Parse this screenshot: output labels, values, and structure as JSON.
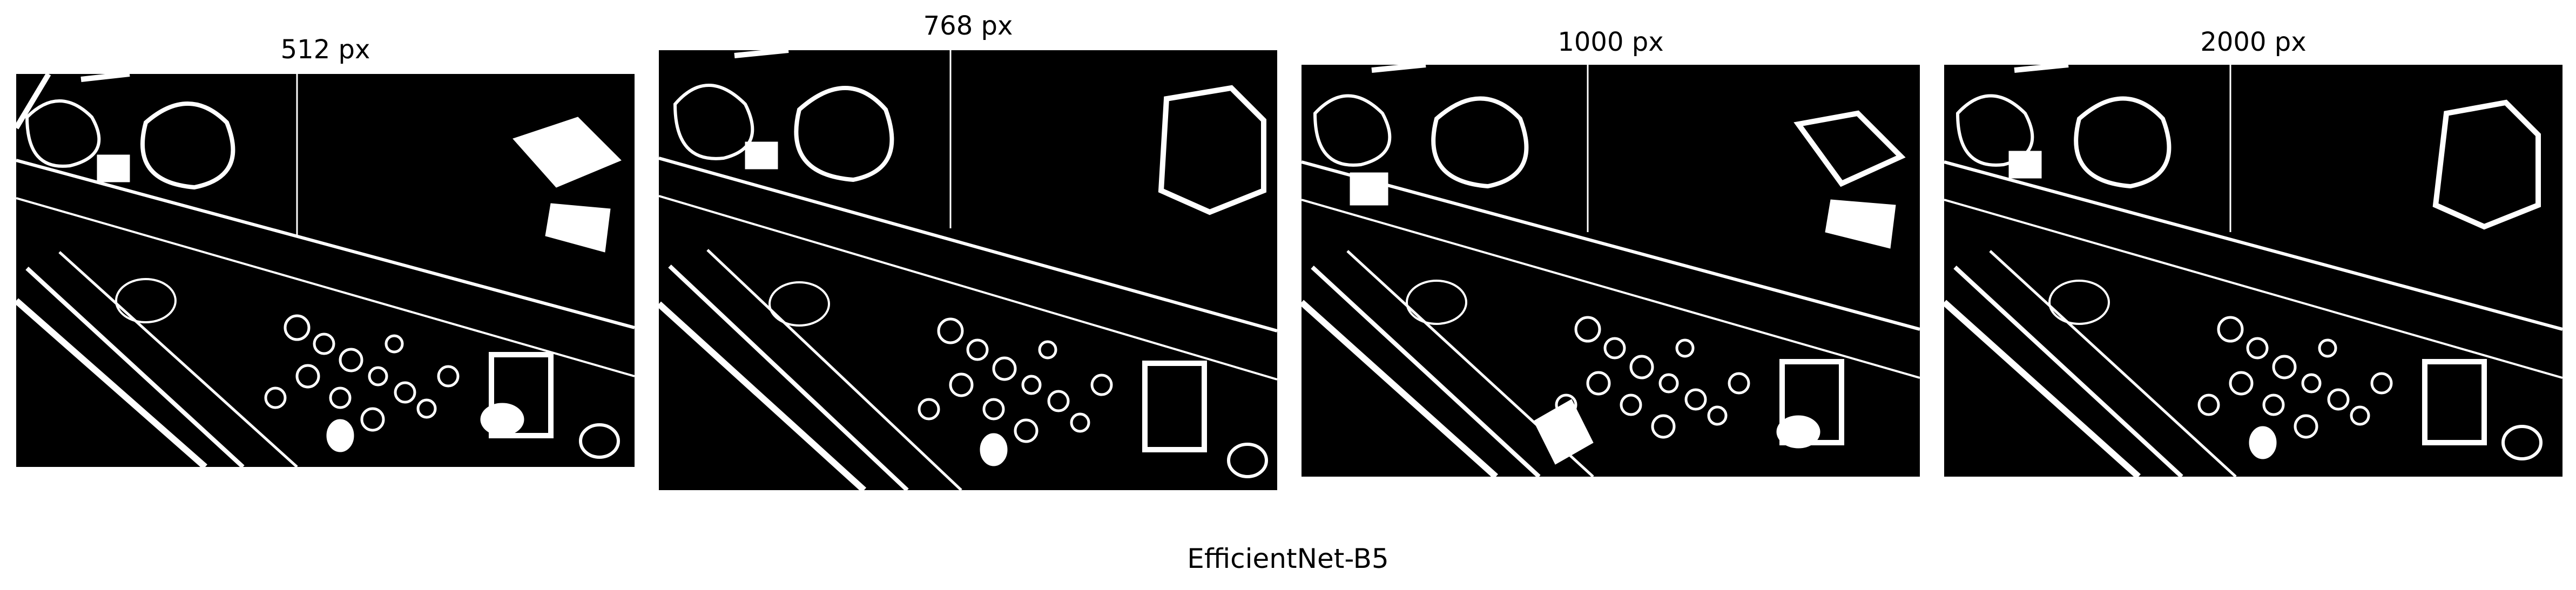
{
  "figure": {
    "footer_label": "EfficientNet-B5",
    "panels": [
      {
        "title": "512 px"
      },
      {
        "title": "768 px"
      },
      {
        "title": "1000 px"
      },
      {
        "title": "2000 px"
      }
    ]
  },
  "colors": {
    "background": "#ffffff",
    "mask_background": "#000000",
    "mask_foreground": "#ffffff"
  }
}
